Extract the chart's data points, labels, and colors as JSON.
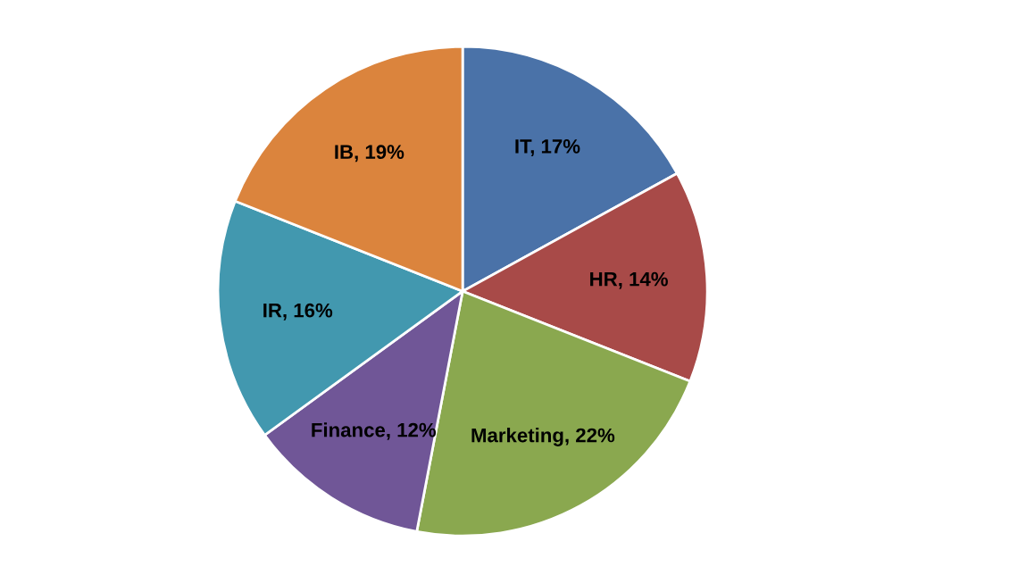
{
  "chart_data": {
    "type": "pie",
    "categories": [
      "IT",
      "HR",
      "Marketing",
      "Finance",
      "IR",
      "IB"
    ],
    "values": [
      17,
      14,
      22,
      12,
      16,
      19
    ],
    "value_labels": [
      "17%",
      "14%",
      "22%",
      "12%",
      "16%",
      "19%"
    ],
    "colors": [
      "#4a72a8",
      "#a84a48",
      "#8aa84f",
      "#705697",
      "#4298af",
      "#db843d"
    ],
    "legend": false
  }
}
